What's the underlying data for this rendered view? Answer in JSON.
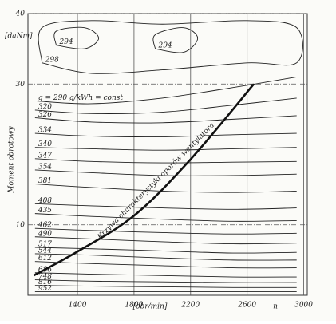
{
  "chart_data": {
    "type": "contour",
    "y_label": "Moment obrotowy",
    "y_unit": "[daNm]",
    "x_unit": "[obr/min]",
    "x_symbol": "n",
    "xlim": [
      1050,
      3025
    ],
    "ylim": [
      0,
      40
    ],
    "xticks": [
      1400,
      1800,
      2200,
      2600,
      3000
    ],
    "yticks": [
      10,
      30,
      40
    ],
    "grid": true,
    "color": "#222222",
    "series": [
      {
        "name": "g = 290 g/kWh = const",
        "x": [
          1100,
          1500,
          2000,
          2500,
          2950
        ],
        "values": [
          27.6,
          27.2,
          28.0,
          29.5,
          31.0
        ]
      },
      {
        "name": "320",
        "x": [
          1100,
          1500,
          2000,
          2500,
          2950
        ],
        "values": [
          26.3,
          25.8,
          26.0,
          27.0,
          28.0
        ]
      },
      {
        "name": "326",
        "x": [
          1100,
          1500,
          2000,
          2500,
          2950
        ],
        "values": [
          25.2,
          24.6,
          24.5,
          25.0,
          25.5
        ]
      },
      {
        "name": "334",
        "x": [
          1100,
          1500,
          2000,
          2500,
          2950
        ],
        "values": [
          23.0,
          22.6,
          22.5,
          22.8,
          23.0
        ]
      },
      {
        "name": "340",
        "x": [
          1100,
          1500,
          2000,
          2500,
          2950
        ],
        "values": [
          21.0,
          20.8,
          20.6,
          20.8,
          21.0
        ]
      },
      {
        "name": "347",
        "x": [
          1100,
          1500,
          2000,
          2500,
          2950
        ],
        "values": [
          19.4,
          19.0,
          18.8,
          18.9,
          19.0
        ]
      },
      {
        "name": "354",
        "x": [
          1100,
          1500,
          2000,
          2500,
          2950
        ],
        "values": [
          17.8,
          17.4,
          17.0,
          17.0,
          17.2
        ]
      },
      {
        "name": "381",
        "x": [
          1100,
          1500,
          2000,
          2500,
          2950
        ],
        "values": [
          15.8,
          15.3,
          14.8,
          14.6,
          14.8
        ]
      },
      {
        "name": "408",
        "x": [
          1100,
          1500,
          2000,
          2500,
          2950
        ],
        "values": [
          13.0,
          12.7,
          12.4,
          12.2,
          12.4
        ]
      },
      {
        "name": "435",
        "x": [
          1100,
          1500,
          2000,
          2500,
          2950
        ],
        "values": [
          11.6,
          11.2,
          10.8,
          10.5,
          10.6
        ]
      },
      {
        "name": "462",
        "x": [
          1100,
          1500,
          2000,
          2500,
          2950
        ],
        "values": [
          9.5,
          9.2,
          8.9,
          8.7,
          8.8
        ]
      },
      {
        "name": "490",
        "x": [
          1100,
          1500,
          2000,
          2500,
          2950
        ],
        "values": [
          8.3,
          8.0,
          7.6,
          7.3,
          7.4
        ]
      },
      {
        "name": "517",
        "x": [
          1100,
          1500,
          2000,
          2500,
          2950
        ],
        "values": [
          6.8,
          6.6,
          6.3,
          6.0,
          6.1
        ]
      },
      {
        "name": "544",
        "x": [
          1100,
          1500,
          2000,
          2500,
          2950
        ],
        "values": [
          5.9,
          5.7,
          5.3,
          5.0,
          5.0
        ]
      },
      {
        "name": "612",
        "x": [
          1100,
          1500,
          2000,
          2500,
          2950
        ],
        "values": [
          4.8,
          4.5,
          4.2,
          3.9,
          3.9
        ]
      },
      {
        "name": "686",
        "x": [
          1100,
          1500,
          2000,
          2500,
          2950
        ],
        "values": [
          3.2,
          3.0,
          2.8,
          2.6,
          2.6
        ]
      },
      {
        "name": "748",
        "x": [
          1100,
          1500,
          2000,
          2500,
          2950
        ],
        "values": [
          2.2,
          2.0,
          1.9,
          1.8,
          1.8
        ]
      },
      {
        "name": "816",
        "x": [
          1100,
          1500,
          2000,
          2500,
          2950
        ],
        "values": [
          1.4,
          1.3,
          1.2,
          1.1,
          1.1
        ]
      },
      {
        "name": "952",
        "x": [
          1100,
          1500,
          2000,
          2500,
          2950
        ],
        "values": [
          0.5,
          0.5,
          0.5,
          0.5,
          0.5
        ]
      },
      {
        "name": "298",
        "x": [
          1150,
          1500,
          2000,
          2600,
          2950,
          2950,
          2600,
          2000,
          1500,
          1150,
          1150
        ],
        "values": [
          33,
          31.5,
          32,
          33,
          33,
          38,
          39,
          38.5,
          39,
          38,
          33
        ]
      },
      {
        "name": "294",
        "x": [
          1250,
          1450,
          1550,
          1450,
          1250,
          1250
        ],
        "values": [
          35.5,
          35,
          36.5,
          38,
          37.5,
          35.5
        ]
      },
      {
        "name": "294",
        "x": [
          1950,
          2150,
          2250,
          2150,
          1950,
          1950
        ],
        "values": [
          35,
          34.5,
          36.5,
          38,
          37,
          35
        ]
      }
    ],
    "curve": {
      "name": "Krzywa charakterystyki oporów wentylatora",
      "color": "#111111",
      "x": [
        1090,
        1400,
        1800,
        2200,
        2647
      ],
      "values": [
        2.8,
        6.2,
        11.3,
        19.3,
        30
      ]
    }
  }
}
